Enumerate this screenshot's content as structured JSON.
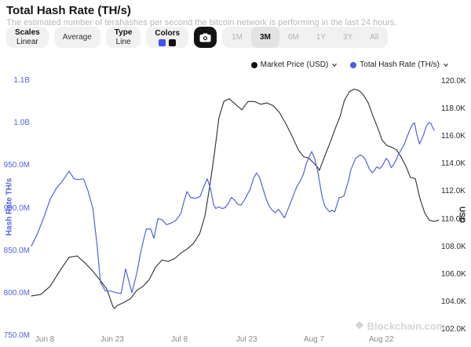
{
  "header": {
    "title": "Total Hash Rate (TH/s)",
    "subtitle": "The estimated number of terahashes per second the bitcoin network is performing in the last 24 hours."
  },
  "toolbar": {
    "scales": {
      "label": "Scales",
      "value": "Linear"
    },
    "average_label": "Average",
    "type": {
      "label": "Type",
      "value": "Line"
    },
    "colors_label": "Colors",
    "swatch_colors": {
      "hashrate": "#4353f0",
      "price": "#111111"
    },
    "camera_icon": "camera-icon",
    "ranges": [
      {
        "label": "1M",
        "active": false
      },
      {
        "label": "3M",
        "active": true
      },
      {
        "label": "6M",
        "active": false
      },
      {
        "label": "1Y",
        "active": false
      },
      {
        "label": "3Y",
        "active": false
      },
      {
        "label": "All",
        "active": false
      }
    ]
  },
  "legend": [
    {
      "label": "Market Price (USD)",
      "color": "#111111",
      "icon": "chevron-down-icon"
    },
    {
      "label": "Total Hash Rate (TH/s)",
      "color": "#4d5ce0",
      "icon": "chevron-down-icon"
    }
  ],
  "watermark": {
    "icon": "blockchain-cube-icon",
    "text": "Blockchain.com"
  },
  "chart_data": {
    "type": "line",
    "title": "Total Hash Rate (TH/s)",
    "grid": false,
    "legend_position": "top-right",
    "x_axis": {
      "unit": "days (t = days since Jun 5)",
      "ticks": [
        {
          "t": 3,
          "label": "Jun 8"
        },
        {
          "t": 18,
          "label": "Jun 23"
        },
        {
          "t": 33,
          "label": "Jul 8"
        },
        {
          "t": 48,
          "label": "Jul 23"
        },
        {
          "t": 63,
          "label": "Aug 7"
        },
        {
          "t": 78,
          "label": "Aug 22"
        }
      ]
    },
    "y_left": {
      "title": "Hash Rate TH/s",
      "color": "#5263e0",
      "range": [
        750,
        1050
      ],
      "unit": "M TH/s",
      "ticks": [
        {
          "v": 1050,
          "label": "1.1B"
        },
        {
          "v": 1000,
          "label": "1.0B"
        },
        {
          "v": 950,
          "label": "950.0M"
        },
        {
          "v": 900,
          "label": "900.0M"
        },
        {
          "v": 850,
          "label": "850.0M"
        },
        {
          "v": 800,
          "label": "800.0M"
        },
        {
          "v": 750,
          "label": "750.0M"
        }
      ]
    },
    "y_right": {
      "title": "USD",
      "color": "#2b2b2b",
      "range": [
        102,
        120
      ],
      "unit": "K USD",
      "ticks": [
        {
          "v": 120,
          "label": "120.0K"
        },
        {
          "v": 118,
          "label": "118.0K"
        },
        {
          "v": 116,
          "label": "116.0K"
        },
        {
          "v": 114,
          "label": "114.0K"
        },
        {
          "v": 112,
          "label": "112.0K"
        },
        {
          "v": 110,
          "label": "110.0K"
        },
        {
          "v": 108,
          "label": "108.0K"
        },
        {
          "v": 106,
          "label": "106.0K"
        },
        {
          "v": 104,
          "label": "104.0K"
        },
        {
          "v": 102,
          "label": "102.0K"
        }
      ]
    },
    "series": [
      {
        "name": "Market Price (USD)",
        "axis": "right",
        "color": "#2e2e2e",
        "width": 1.1,
        "points": [
          [
            0,
            104.4
          ],
          [
            2.1,
            104.5
          ],
          [
            4.2,
            105.1
          ],
          [
            6.3,
            106.2
          ],
          [
            8.4,
            107.2
          ],
          [
            10.2,
            107.3
          ],
          [
            11.9,
            106.8
          ],
          [
            13.7,
            106.2
          ],
          [
            15.4,
            105.5
          ],
          [
            16.8,
            104.9
          ],
          [
            18.2,
            103.6
          ],
          [
            18.6,
            103.5
          ],
          [
            19.1,
            103.7
          ],
          [
            20.5,
            103.9
          ],
          [
            22.1,
            104.2
          ],
          [
            23.5,
            104.8
          ],
          [
            24.9,
            105.1
          ],
          [
            26.3,
            105.6
          ],
          [
            27.7,
            106.5
          ],
          [
            29.1,
            107.0
          ],
          [
            30.5,
            106.9
          ],
          [
            31.9,
            107.1
          ],
          [
            33.3,
            107.5
          ],
          [
            34.7,
            107.8
          ],
          [
            36.1,
            108.2
          ],
          [
            37.5,
            108.9
          ],
          [
            38.7,
            110.2
          ],
          [
            39.7,
            112.2
          ],
          [
            40.8,
            114.7
          ],
          [
            41.8,
            117.3
          ],
          [
            42.9,
            118.5
          ],
          [
            44.1,
            118.7
          ],
          [
            45.5,
            118.3
          ],
          [
            46.9,
            117.9
          ],
          [
            48.3,
            118.5
          ],
          [
            49.7,
            118.5
          ],
          [
            51.1,
            118.3
          ],
          [
            52.5,
            118.4
          ],
          [
            53.9,
            118.2
          ],
          [
            55.3,
            117.7
          ],
          [
            56.7,
            116.9
          ],
          [
            58.1,
            116.0
          ],
          [
            59.5,
            115.0
          ],
          [
            60.7,
            114.5
          ],
          [
            61.8,
            114.4
          ],
          [
            62.8,
            114.1
          ],
          [
            63.9,
            113.7
          ],
          [
            64.2,
            113.5
          ],
          [
            65.6,
            114.7
          ],
          [
            66.7,
            115.6
          ],
          [
            67.7,
            116.5
          ],
          [
            68.8,
            117.4
          ],
          [
            69.8,
            118.6
          ],
          [
            70.9,
            119.2
          ],
          [
            71.9,
            119.4
          ],
          [
            73.0,
            119.3
          ],
          [
            74.0,
            119.0
          ],
          [
            75.1,
            118.4
          ],
          [
            76.1,
            117.5
          ],
          [
            77.2,
            116.6
          ],
          [
            78.2,
            115.7
          ],
          [
            79.3,
            115.3
          ],
          [
            80.3,
            115.2
          ],
          [
            81.4,
            115.0
          ],
          [
            82.4,
            114.5
          ],
          [
            83.5,
            113.8
          ],
          [
            84.5,
            113.0
          ],
          [
            85.6,
            112.9
          ],
          [
            86.6,
            111.5
          ],
          [
            87.7,
            110.4
          ],
          [
            88.7,
            109.9
          ],
          [
            89.8,
            109.8
          ],
          [
            90.8,
            109.9
          ]
        ]
      },
      {
        "name": "Total Hash Rate (TH/s)",
        "axis": "left",
        "color": "#5263e0",
        "width": 1.2,
        "points": [
          [
            0,
            855
          ],
          [
            1.4,
            870
          ],
          [
            2.8,
            889
          ],
          [
            4.2,
            910
          ],
          [
            5.6,
            923
          ],
          [
            7.0,
            932
          ],
          [
            8.4,
            943
          ],
          [
            9.5,
            934
          ],
          [
            10.5,
            933
          ],
          [
            11.6,
            934
          ],
          [
            12.6,
            920
          ],
          [
            13.7,
            899
          ],
          [
            14.7,
            853
          ],
          [
            15.4,
            812
          ],
          [
            16.5,
            802
          ],
          [
            17.7,
            802
          ],
          [
            18.9,
            800
          ],
          [
            20.0,
            799
          ],
          [
            21.0,
            828
          ],
          [
            22.4,
            800
          ],
          [
            23.5,
            823
          ],
          [
            24.5,
            851
          ],
          [
            25.6,
            875
          ],
          [
            26.6,
            875
          ],
          [
            27.3,
            864
          ],
          [
            28.2,
            887
          ],
          [
            29.1,
            886
          ],
          [
            30.1,
            880
          ],
          [
            31.2,
            882
          ],
          [
            32.2,
            885
          ],
          [
            33.3,
            893
          ],
          [
            34.1,
            909
          ],
          [
            34.7,
            919
          ],
          [
            35.5,
            912
          ],
          [
            36.6,
            911
          ],
          [
            37.6,
            913
          ],
          [
            38.7,
            928
          ],
          [
            39.2,
            934
          ],
          [
            39.9,
            923
          ],
          [
            40.6,
            904
          ],
          [
            41.1,
            899
          ],
          [
            41.8,
            901
          ],
          [
            42.5,
            899
          ],
          [
            43.2,
            900
          ],
          [
            43.9,
            905
          ],
          [
            44.6,
            912
          ],
          [
            45.3,
            909
          ],
          [
            46.0,
            904
          ],
          [
            46.7,
            903
          ],
          [
            47.4,
            908
          ],
          [
            48.1,
            915
          ],
          [
            48.8,
            922
          ],
          [
            49.5,
            934
          ],
          [
            50.2,
            941
          ],
          [
            50.9,
            935
          ],
          [
            51.6,
            923
          ],
          [
            52.3,
            911
          ],
          [
            53.0,
            902
          ],
          [
            53.7,
            897
          ],
          [
            54.4,
            894
          ],
          [
            55.1,
            898
          ],
          [
            55.8,
            893
          ],
          [
            56.4,
            888
          ],
          [
            57.1,
            897
          ],
          [
            57.8,
            906
          ],
          [
            58.5,
            916
          ],
          [
            59.2,
            925
          ],
          [
            59.9,
            931
          ],
          [
            60.6,
            939
          ],
          [
            61.3,
            952
          ],
          [
            62.0,
            961
          ],
          [
            62.5,
            966
          ],
          [
            63.2,
            957
          ],
          [
            63.9,
            941
          ],
          [
            64.4,
            925
          ],
          [
            64.9,
            911
          ],
          [
            65.5,
            901
          ],
          [
            66.0,
            898
          ],
          [
            66.5,
            895
          ],
          [
            67.0,
            897
          ],
          [
            67.6,
            895
          ],
          [
            68.1,
            903
          ],
          [
            68.6,
            912
          ],
          [
            69.1,
            912
          ],
          [
            69.7,
            914
          ],
          [
            70.2,
            923
          ],
          [
            70.7,
            932
          ],
          [
            71.2,
            944
          ],
          [
            71.8,
            952
          ],
          [
            72.3,
            958
          ],
          [
            72.8,
            960
          ],
          [
            73.3,
            962
          ],
          [
            73.9,
            960
          ],
          [
            74.4,
            957
          ],
          [
            74.9,
            951
          ],
          [
            75.4,
            945
          ],
          [
            76.0,
            941
          ],
          [
            76.5,
            944
          ],
          [
            77.0,
            948
          ],
          [
            77.6,
            946
          ],
          [
            78.1,
            948
          ],
          [
            78.6,
            953
          ],
          [
            79.1,
            958
          ],
          [
            79.6,
            955
          ],
          [
            80.2,
            947
          ],
          [
            80.7,
            950
          ],
          [
            81.2,
            955
          ],
          [
            81.7,
            961
          ],
          [
            82.3,
            967
          ],
          [
            82.8,
            971
          ],
          [
            83.3,
            977
          ],
          [
            83.8,
            984
          ],
          [
            84.4,
            992
          ],
          [
            84.9,
            997
          ],
          [
            85.4,
            1000
          ],
          [
            85.9,
            987
          ],
          [
            86.5,
            975
          ],
          [
            87.0,
            980
          ],
          [
            87.5,
            987
          ],
          [
            88.0,
            995
          ],
          [
            88.6,
            1000
          ],
          [
            89.1,
            999
          ],
          [
            89.4,
            995
          ],
          [
            89.8,
            991
          ]
        ]
      }
    ]
  }
}
